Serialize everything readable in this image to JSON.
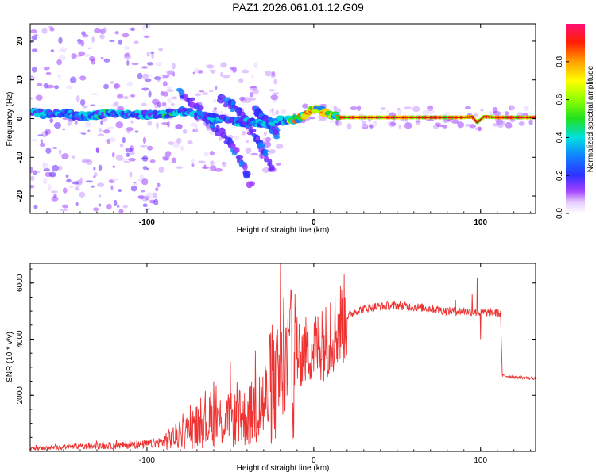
{
  "title": "PAZ1.2026.061.01.12.G09",
  "colors": {
    "snr_line": "#ee3333",
    "frame": "#000000"
  },
  "chart_data": [
    {
      "type": "heatmap",
      "name": "spectrogram",
      "xlabel": "Height of straight line (km)",
      "ylabel": "Frequency (Hz)",
      "xlim": [
        -170,
        133
      ],
      "ylim": [
        -24.5,
        24.5
      ],
      "xticks": [
        -100,
        0,
        100
      ],
      "xtick_labels": [
        "-100",
        "0",
        "100"
      ],
      "yticks": [
        -20,
        -10,
        0,
        10,
        20
      ],
      "ytick_labels": [
        "-20",
        "-10",
        "0",
        "10",
        "20"
      ],
      "colorbar": {
        "label": "Normalized spectral amplitude",
        "range": [
          0,
          1
        ],
        "ticks": [
          0.0,
          0.2,
          0.4,
          0.6,
          0.8
        ],
        "tick_labels": [
          "0.0",
          "0.2",
          "0.4",
          "0.6",
          "0.8"
        ]
      },
      "ridge": {
        "description": "dominant frequency trace",
        "points": [
          [
            -170,
            2
          ],
          [
            -160,
            1
          ],
          [
            -150,
            1.5
          ],
          [
            -140,
            0.5
          ],
          [
            -130,
            1
          ],
          [
            -120,
            1.5
          ],
          [
            -110,
            1.2
          ],
          [
            -100,
            1
          ],
          [
            -90,
            1
          ],
          [
            -80,
            2
          ],
          [
            -70,
            1
          ],
          [
            -60,
            0
          ],
          [
            -50,
            -0.5
          ],
          [
            -40,
            -1
          ],
          [
            -30,
            -1
          ],
          [
            -20,
            -0.5
          ],
          [
            -15,
            -0.5
          ],
          [
            -10,
            0
          ],
          [
            -5,
            1
          ],
          [
            0,
            2.5
          ],
          [
            5,
            2
          ],
          [
            10,
            1
          ],
          [
            15,
            0.3
          ],
          [
            30,
            0.3
          ],
          [
            60,
            0.3
          ],
          [
            90,
            0.3
          ],
          [
            95,
            0.5
          ],
          [
            98,
            -1
          ],
          [
            102,
            0.5
          ],
          [
            110,
            0.3
          ],
          [
            133,
            0.3
          ]
        ]
      },
      "spur_branches": [
        {
          "points": [
            [
              -80,
              7
            ],
            [
              -70,
              3
            ],
            [
              -60,
              -2
            ],
            [
              -50,
              -6
            ],
            [
              -42,
              -12
            ],
            [
              -38,
              -17
            ]
          ]
        },
        {
          "points": [
            [
              -55,
              5
            ],
            [
              -45,
              2
            ],
            [
              -38,
              -3
            ],
            [
              -30,
              -8
            ],
            [
              -25,
              -13
            ]
          ]
        },
        {
          "points": [
            [
              -35,
              2
            ],
            [
              -28,
              -1
            ],
            [
              -22,
              -4
            ]
          ]
        }
      ]
    },
    {
      "type": "line",
      "name": "snr",
      "xlabel": "Height of straight line (km)",
      "ylabel": "SNR (10 * v/v)",
      "xlim": [
        -170,
        133
      ],
      "ylim": [
        0,
        6700
      ],
      "xticks": [
        -100,
        0,
        100
      ],
      "xtick_labels": [
        "-100",
        "0",
        "100"
      ],
      "yticks": [
        2000,
        4000,
        6000
      ],
      "ytick_labels": [
        "2000",
        "4000",
        "6000"
      ],
      "series": [
        {
          "name": "SNR",
          "envelope": [
            [
              -170,
              100
            ],
            [
              -150,
              150
            ],
            [
              -120,
              200
            ],
            [
              -100,
              250
            ],
            [
              -90,
              350
            ],
            [
              -80,
              600
            ],
            [
              -70,
              900
            ],
            [
              -60,
              1100
            ],
            [
              -50,
              1100
            ],
            [
              -40,
              1200
            ],
            [
              -30,
              1700
            ],
            [
              -20,
              2500
            ],
            [
              -15,
              3000
            ],
            [
              -10,
              3300
            ],
            [
              -5,
              3600
            ],
            [
              0,
              3700
            ],
            [
              5,
              3800
            ],
            [
              10,
              4100
            ],
            [
              15,
              4500
            ],
            [
              20,
              4800
            ],
            [
              25,
              5000
            ],
            [
              35,
              5150
            ],
            [
              50,
              5200
            ],
            [
              60,
              5150
            ],
            [
              70,
              5100
            ],
            [
              80,
              5000
            ],
            [
              90,
              5000
            ],
            [
              100,
              4950
            ],
            [
              108,
              4950
            ],
            [
              112,
              4900
            ],
            [
              113,
              2700
            ],
            [
              120,
              2650
            ],
            [
              133,
              2600
            ]
          ],
          "spikes": [
            [
              -20,
              6700
            ],
            [
              -18,
              5500
            ],
            [
              -25,
              4500
            ],
            [
              -35,
              3600
            ],
            [
              -50,
              3200
            ],
            [
              -60,
              2500
            ],
            [
              10,
              5300
            ],
            [
              5,
              5000
            ],
            [
              -10,
              4800
            ],
            [
              95,
              5600
            ],
            [
              98,
              6200
            ],
            [
              100,
              4000
            ],
            [
              85,
              5400
            ]
          ]
        }
      ]
    }
  ]
}
